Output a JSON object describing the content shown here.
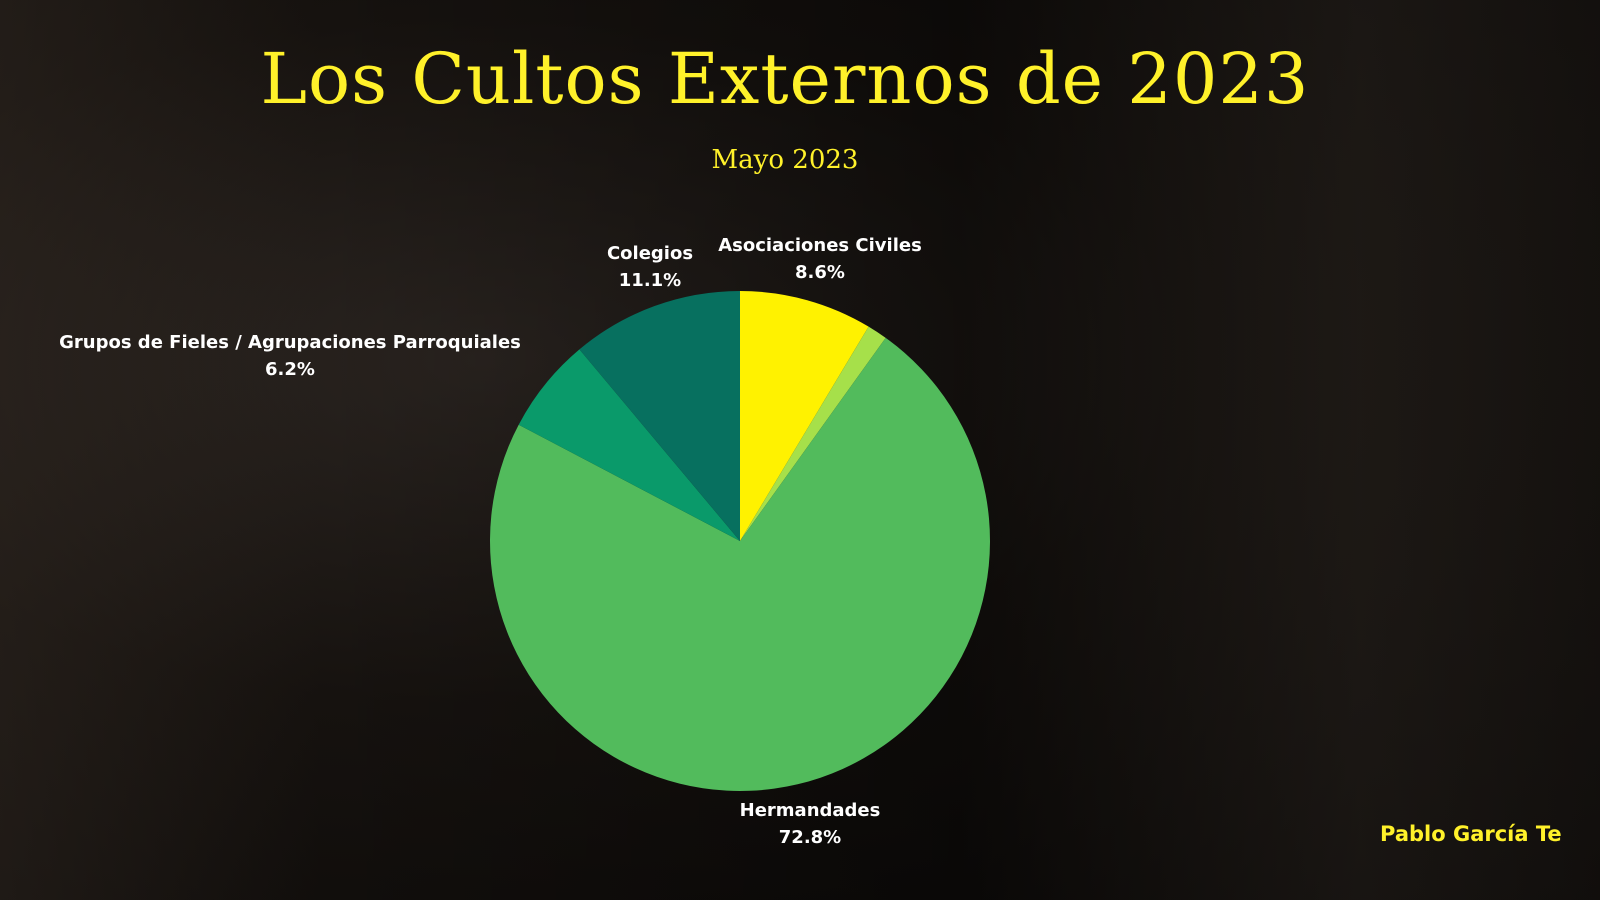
{
  "header": {
    "title": "Los Cultos Externos de 2023",
    "subtitle": "Mayo 2023"
  },
  "author": "Pablo García Te",
  "labels": {
    "asociaciones": {
      "name": "Asociaciones Civiles",
      "pct": "8.6%"
    },
    "colegios": {
      "name": "Colegios",
      "pct": "11.1%"
    },
    "grupos": {
      "name": "Grupos de Fieles / Agrupaciones Parroquiales",
      "pct": "6.2%"
    },
    "hermandades": {
      "name": "Hermandades",
      "pct": "72.8%"
    }
  },
  "chart_data": {
    "type": "pie",
    "title": "Los Cultos Externos de 2023",
    "subtitle": "Mayo 2023",
    "categories": [
      "Asociaciones Civiles",
      "Otros (sin etiqueta)",
      "Hermandades",
      "Grupos de Fieles / Agrupaciones Parroquiales",
      "Colegios"
    ],
    "values": [
      8.6,
      1.3,
      72.8,
      6.2,
      11.1
    ],
    "colors": [
      "#fff200",
      "#a6e04a",
      "#52bb5c",
      "#0a9a6a",
      "#07705f"
    ],
    "start_angle": "12 o'clock, clockwise",
    "legend": "none (direct labels)"
  }
}
